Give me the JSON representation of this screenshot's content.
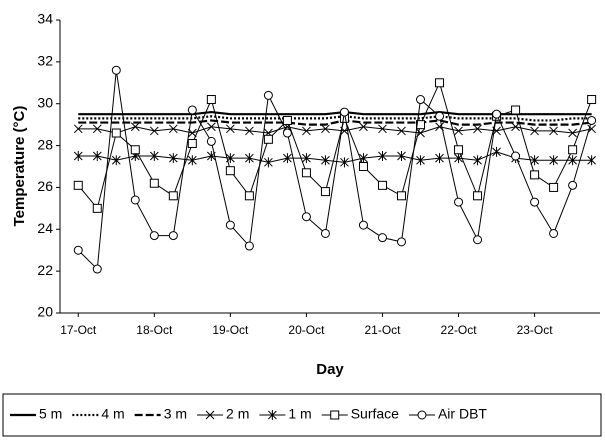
{
  "chart_data": {
    "type": "line",
    "y_label": "Temperature (°C)",
    "x_label": "Day",
    "x": [
      0,
      0.25,
      0.5,
      0.75,
      1,
      1.25,
      1.5,
      1.75,
      2,
      2.25,
      2.5,
      2.75,
      3,
      3.25,
      3.5,
      3.75,
      4,
      4.25,
      4.5,
      4.75,
      5,
      5.25,
      5.5,
      5.75,
      6,
      6.25,
      6.5,
      6.75
    ],
    "xlim": [
      -0.24,
      6.86
    ],
    "xticks": [
      {
        "value": 0,
        "label": "17-Oct"
      },
      {
        "value": 1,
        "label": "18-Oct"
      },
      {
        "value": 2,
        "label": "19-Oct"
      },
      {
        "value": 3,
        "label": "20-Oct"
      },
      {
        "value": 4,
        "label": "21-Oct"
      },
      {
        "value": 5,
        "label": "22-Oct"
      },
      {
        "value": 6,
        "label": "23-Oct"
      }
    ],
    "ylim": [
      20,
      34
    ],
    "yticks": [
      20,
      22,
      24,
      26,
      28,
      30,
      32,
      34
    ],
    "grid": false,
    "series": [
      {
        "name": "5 m",
        "color": "#000000",
        "dash": "solid",
        "width": 2.2,
        "marker": "none",
        "values": [
          29.5,
          29.5,
          29.5,
          29.5,
          29.5,
          29.5,
          29.5,
          29.6,
          29.5,
          29.5,
          29.5,
          29.5,
          29.5,
          29.5,
          29.6,
          29.5,
          29.5,
          29.5,
          29.5,
          29.6,
          29.5,
          29.5,
          29.5,
          29.5,
          29.5,
          29.5,
          29.5,
          29.5
        ]
      },
      {
        "name": "4 m",
        "color": "#000000",
        "dash": "dot",
        "width": 2.2,
        "marker": "none",
        "values": [
          29.3,
          29.3,
          29.3,
          29.3,
          29.3,
          29.3,
          29.3,
          29.4,
          29.3,
          29.3,
          29.3,
          29.3,
          29.3,
          29.3,
          29.4,
          29.3,
          29.3,
          29.3,
          29.3,
          29.4,
          29.3,
          29.3,
          29.3,
          29.3,
          29.2,
          29.2,
          29.3,
          29.3
        ]
      },
      {
        "name": "3 m",
        "color": "#000000",
        "dash": "dash",
        "width": 2.2,
        "marker": "none",
        "values": [
          29.1,
          29.1,
          29.1,
          29.1,
          29.1,
          29.1,
          29.1,
          29.2,
          29.1,
          29.1,
          29.1,
          29.1,
          29.0,
          29.0,
          29.2,
          29.1,
          29.1,
          29.1,
          29.1,
          29.2,
          29.0,
          29.0,
          29.1,
          29.1,
          29.0,
          29.0,
          29.0,
          29.1
        ]
      },
      {
        "name": "2 m",
        "color": "#000000",
        "dash": "solid",
        "width": 1,
        "marker": "x",
        "values": [
          28.8,
          28.8,
          28.6,
          28.9,
          28.7,
          28.8,
          28.6,
          28.9,
          28.8,
          28.7,
          28.6,
          28.9,
          28.7,
          28.8,
          28.7,
          28.9,
          28.8,
          28.7,
          28.6,
          28.9,
          28.7,
          28.8,
          28.7,
          28.9,
          28.7,
          28.7,
          28.6,
          28.8
        ]
      },
      {
        "name": "1 m",
        "color": "#000000",
        "dash": "solid",
        "width": 1,
        "marker": "asterisk",
        "values": [
          27.5,
          27.5,
          27.3,
          27.5,
          27.5,
          27.4,
          27.3,
          27.5,
          27.4,
          27.4,
          27.2,
          27.4,
          27.4,
          27.3,
          27.2,
          27.4,
          27.5,
          27.5,
          27.3,
          27.4,
          27.4,
          27.3,
          27.7,
          27.4,
          27.3,
          27.3,
          27.3,
          27.3
        ]
      },
      {
        "name": "Surface",
        "color": "#000000",
        "dash": "solid",
        "width": 1,
        "marker": "square",
        "values": [
          26.1,
          25.0,
          28.6,
          27.8,
          26.2,
          25.6,
          28.1,
          30.2,
          26.8,
          25.6,
          28.3,
          29.2,
          26.7,
          25.8,
          29.3,
          27.0,
          26.1,
          25.6,
          29.0,
          31.0,
          27.8,
          25.6,
          29.4,
          29.7,
          26.6,
          26.0,
          27.8,
          30.2
        ]
      },
      {
        "name": "Air DBT",
        "color": "#000000",
        "dash": "solid",
        "width": 1,
        "marker": "circle",
        "values": [
          23.0,
          22.1,
          31.6,
          25.4,
          23.7,
          23.7,
          29.7,
          28.2,
          24.2,
          23.2,
          30.4,
          28.6,
          24.6,
          23.8,
          29.6,
          24.2,
          23.6,
          23.4,
          30.2,
          29.4,
          25.3,
          23.5,
          29.5,
          27.5,
          25.3,
          23.8,
          26.1,
          29.2
        ]
      }
    ]
  }
}
